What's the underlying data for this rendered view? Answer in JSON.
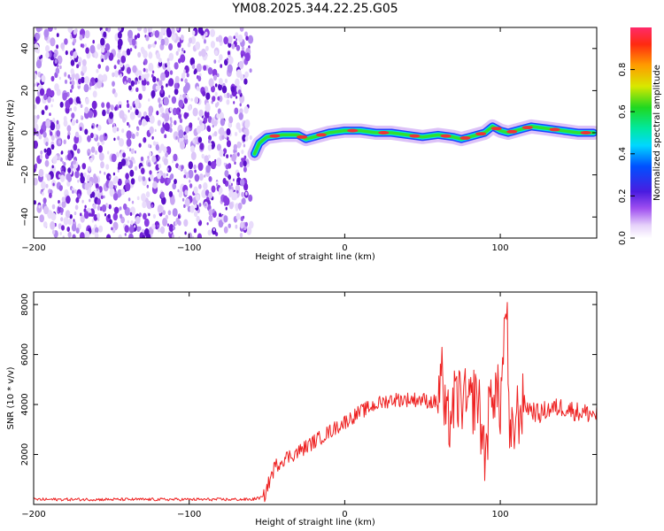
{
  "title": "YM08.2025.344.22.25.G05",
  "colors": {
    "snr_line": "#ee2222",
    "ridge": "#ee3333",
    "speckle": "#8a2be2"
  },
  "chart_data": [
    {
      "type": "heatmap",
      "title": "YM08.2025.344.22.25.G05",
      "xlabel": "Height of straight line (km)",
      "ylabel": "Frequency (Hz)",
      "xlim": [
        -200,
        162
      ],
      "ylim": [
        -50,
        50
      ],
      "xticks": [
        -200,
        -100,
        0,
        100
      ],
      "yticks": [
        -40,
        -20,
        0,
        20,
        40
      ],
      "noise_region_end_km": -60,
      "ridge": {
        "x": [
          -58,
          -55,
          -50,
          -40,
          -30,
          -25,
          -20,
          -10,
          0,
          10,
          20,
          30,
          40,
          50,
          60,
          70,
          75,
          80,
          85,
          90,
          95,
          100,
          105,
          110,
          115,
          120,
          130,
          140,
          150,
          160
        ],
        "y": [
          -10,
          -5,
          -2,
          -1,
          -1,
          -3,
          -2,
          0,
          1,
          1,
          0,
          0,
          -1,
          -2,
          -1,
          -2,
          -3,
          -2,
          -1,
          0,
          3,
          1,
          0,
          1,
          2,
          3,
          2,
          1,
          0,
          0
        ]
      },
      "colorbar": {
        "label": "Normalized spectral amplitude",
        "ticks": [
          0.0,
          0.2,
          0.4,
          0.6,
          0.8
        ],
        "range": [
          0,
          1
        ]
      }
    },
    {
      "type": "line",
      "xlabel": "Height of straight line (km)",
      "ylabel": "SNR (10 * v/v)",
      "xlim": [
        -200,
        162
      ],
      "ylim": [
        0,
        8500
      ],
      "xticks": [
        -200,
        -100,
        0,
        100
      ],
      "yticks": [
        2000,
        4000,
        6000,
        8000
      ],
      "series": [
        {
          "name": "SNR",
          "x": [
            -200,
            -150,
            -100,
            -60,
            -52,
            -48,
            -45,
            -40,
            -30,
            -20,
            -10,
            0,
            10,
            20,
            25,
            30,
            40,
            50,
            55,
            60,
            62,
            65,
            70,
            75,
            80,
            85,
            90,
            95,
            100,
            102,
            104,
            106,
            110,
            115,
            120,
            125,
            130,
            140,
            150,
            162
          ],
          "y": [
            200,
            200,
            200,
            200,
            300,
            1000,
            1500,
            1800,
            2100,
            2500,
            2900,
            3300,
            3700,
            4000,
            4100,
            4200,
            4200,
            4200,
            4100,
            4100,
            5500,
            3000,
            4000,
            4300,
            3800,
            4500,
            2000,
            4800,
            4000,
            6000,
            8400,
            2000,
            3500,
            4000,
            3800,
            3600,
            3800,
            3900,
            3700,
            3600
          ]
        }
      ]
    }
  ]
}
